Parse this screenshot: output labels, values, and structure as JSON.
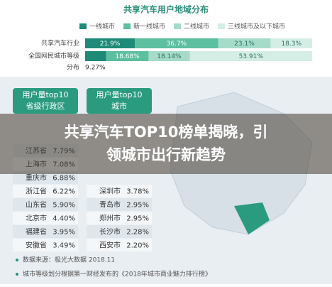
{
  "chart": {
    "title": "共享汽车用户地域分布",
    "legend": [
      "一线城市",
      "新一线城市",
      "二线城市",
      "三线城市及以下城市"
    ],
    "colors": [
      "#1e8a78",
      "#5cbf9f",
      "#a6dbc9",
      "#d4eee5"
    ],
    "rows": [
      {
        "label": "共享汽车行业",
        "values": [
          21.9,
          36.7,
          23.1,
          18.3
        ],
        "value_labels": [
          "21.9%",
          "36.7%",
          "23.1%",
          "18.3%"
        ]
      },
      {
        "label": "全国网民城市等级",
        "label2": "分布",
        "values": [
          9.27,
          18.68,
          18.14,
          53.91
        ],
        "value_labels": [
          "9.27%",
          "18.68%",
          "18.14%",
          "53.91%"
        ]
      }
    ]
  },
  "provinces": {
    "header": "用户量top10",
    "header2": "省级行政区",
    "rows": [
      [
        "江苏省",
        "7.79%"
      ],
      [
        "上海市",
        "7.08%"
      ],
      [
        "重庆市",
        "6.88%"
      ],
      [
        "浙江省",
        "6.22%"
      ],
      [
        "山东省",
        "5.90%"
      ],
      [
        "北京市",
        "4.40%"
      ],
      [
        "福建省",
        "3.95%"
      ],
      [
        "安徽省",
        "3.49%"
      ]
    ]
  },
  "cities": {
    "header": "用户量top10",
    "header2": "城市",
    "rows": [
      [
        "深圳市",
        "3.78%"
      ],
      [
        "青岛市",
        "2.95%"
      ],
      [
        "郑州市",
        "2.95%"
      ],
      [
        "长沙市",
        "2.28%"
      ],
      [
        "西安市",
        "2.20%"
      ]
    ]
  },
  "headline": {
    "line1": "共享汽车TOP10榜单揭晓，引",
    "line2": "领城市出行新趋势"
  },
  "footnotes": [
    "数据来源：极光大数据 2018.11",
    "城市等级划分根据第一财经发布的《2018年城市商业魅力排行榜》"
  ]
}
